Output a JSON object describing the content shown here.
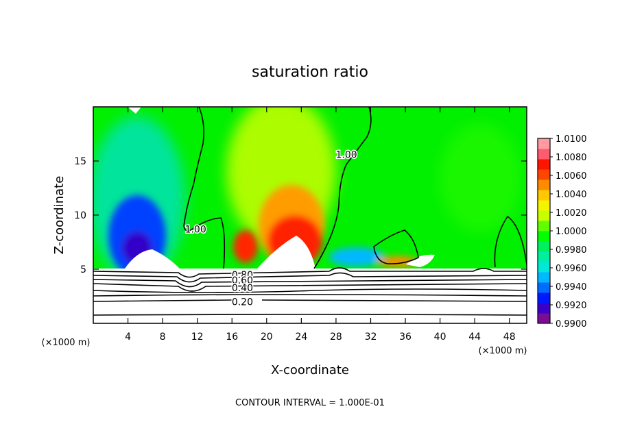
{
  "chart_data": {
    "type": "heatmap",
    "title": "saturation ratio",
    "xlabel": "X-coordinate",
    "ylabel": "Z-coordinate",
    "x_unit": "(×1000 m)",
    "y_unit": "",
    "xlim": [
      0,
      50
    ],
    "ylim": [
      0,
      20
    ],
    "x_ticks": [
      4,
      8,
      12,
      16,
      20,
      24,
      28,
      32,
      36,
      40,
      44,
      48
    ],
    "y_ticks": [
      5,
      10,
      15
    ],
    "footer": "CONTOUR INTERVAL = 1.000E-01",
    "colorbar": {
      "labels": [
        "1.0100",
        "1.0080",
        "1.0060",
        "1.0040",
        "1.0020",
        "1.0000",
        "0.9980",
        "0.9960",
        "0.9940",
        "0.9920",
        "0.9900"
      ],
      "min": 0.99,
      "max": 1.01,
      "colors": [
        "#7a0d93",
        "#3a00c8",
        "#0018ff",
        "#006cff",
        "#00b8ff",
        "#00e8d8",
        "#00f0a0",
        "#00f060",
        "#00ff00",
        "#60ff00",
        "#c8ff00",
        "#f4f400",
        "#ffc800",
        "#ff8c00",
        "#ff4600",
        "#ff1400",
        "#ff5a70",
        "#ff9aa0"
      ]
    },
    "contour_labels": [
      {
        "text": "1.00",
        "x": 11.8,
        "z": 8.7
      },
      {
        "text": "1.00",
        "x": 29.2,
        "z": 15.6
      },
      {
        "text": "0.80",
        "x": 17.2,
        "z": 4.5
      },
      {
        "text": "0.60",
        "x": 17.2,
        "z": 4.0
      },
      {
        "text": "0.40",
        "x": 17.2,
        "z": 3.3
      },
      {
        "text": "0.20",
        "x": 17.2,
        "z": 2.0
      }
    ]
  }
}
